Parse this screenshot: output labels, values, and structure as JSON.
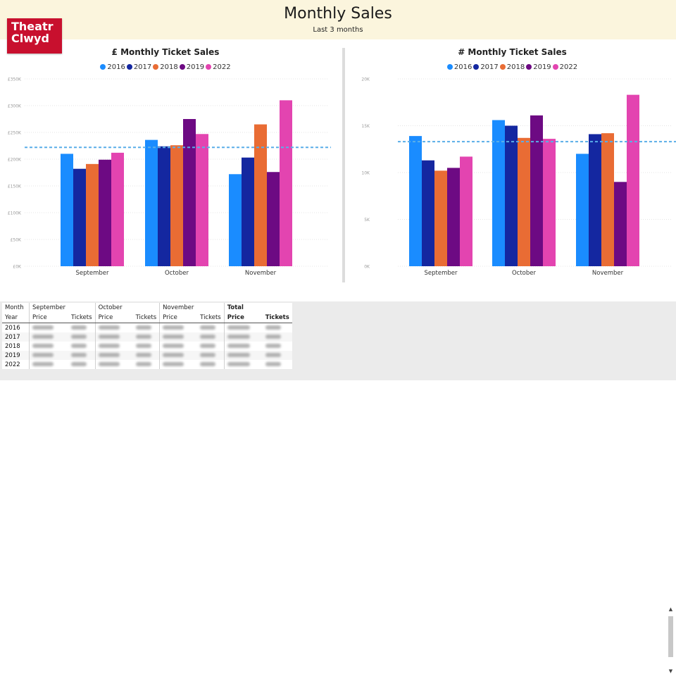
{
  "header": {
    "title": "Monthly Sales",
    "subtitle": "Last 3 months"
  },
  "logo": {
    "line1": "Theatr",
    "line2": "Clwyd",
    "color": "#c8102e"
  },
  "legend_years": [
    "2016",
    "2017",
    "2018",
    "2019",
    "2022"
  ],
  "colors": [
    "#1a8cff",
    "#1427a0",
    "#e96c34",
    "#6d0a83",
    "#e344b0"
  ],
  "chart_data": [
    {
      "type": "bar",
      "title": "£ Monthly Ticket Sales",
      "categories": [
        "September",
        "October",
        "November"
      ],
      "yticks": [
        "£0K",
        "£50K",
        "£100K",
        "£150K",
        "£200K",
        "£250K",
        "£300K",
        "£350K"
      ],
      "ylim": [
        0,
        350000
      ],
      "average_line": 222000,
      "series": [
        {
          "name": "2016",
          "values": [
            210000,
            236000,
            172000
          ]
        },
        {
          "name": "2017",
          "values": [
            182000,
            224000,
            203000
          ]
        },
        {
          "name": "2018",
          "values": [
            191000,
            226000,
            265000
          ]
        },
        {
          "name": "2019",
          "values": [
            199000,
            275000,
            176000
          ]
        },
        {
          "name": "2022",
          "values": [
            212000,
            247000,
            310000
          ]
        }
      ]
    },
    {
      "type": "bar",
      "title": "# Monthly Ticket Sales",
      "categories": [
        "September",
        "October",
        "November"
      ],
      "yticks": [
        "0K",
        "5K",
        "10K",
        "15K",
        "20K"
      ],
      "ylim": [
        0,
        20000
      ],
      "average_line": 13300,
      "series": [
        {
          "name": "2016",
          "values": [
            13900,
            15600,
            12000
          ]
        },
        {
          "name": "2017",
          "values": [
            11300,
            15000,
            14100
          ]
        },
        {
          "name": "2018",
          "values": [
            10200,
            13700,
            14200
          ]
        },
        {
          "name": "2019",
          "values": [
            10500,
            16100,
            9000
          ]
        },
        {
          "name": "2022",
          "values": [
            11700,
            13600,
            18300
          ]
        }
      ]
    }
  ],
  "table": {
    "header1": [
      "Month",
      "September",
      "",
      "October",
      "",
      "November",
      "",
      "Total",
      ""
    ],
    "header2": [
      "Year",
      "Price",
      "Tickets",
      "Price",
      "Tickets",
      "Price",
      "Tickets",
      "Price",
      "Tickets"
    ],
    "rows": [
      "2016",
      "2017",
      "2018",
      "2019",
      "2022"
    ]
  }
}
